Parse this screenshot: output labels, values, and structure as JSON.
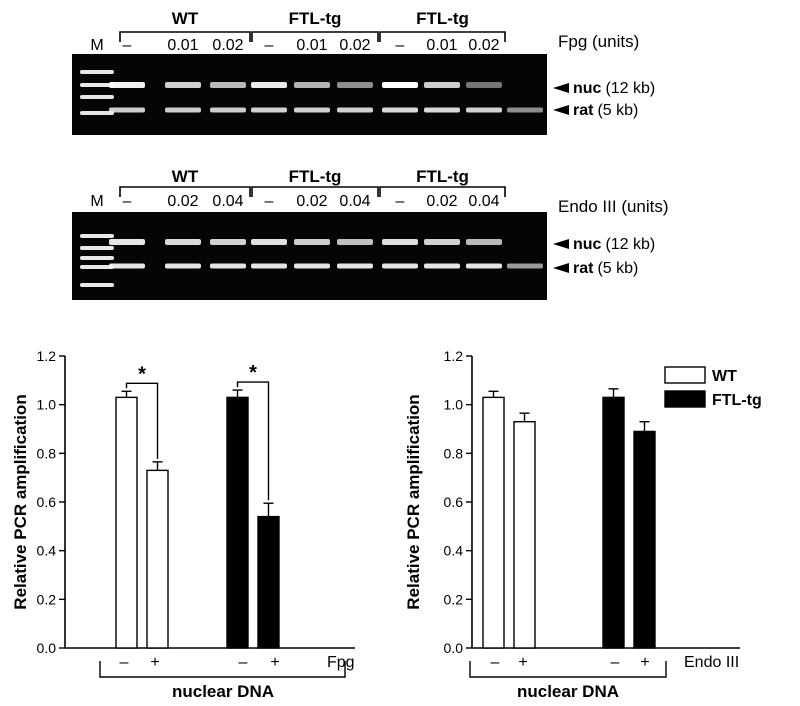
{
  "gels": [
    {
      "marker_label": "M",
      "groups": [
        "WT",
        "FTL-tg",
        "FTL-tg"
      ],
      "lane_labels": [
        "–",
        "0.01",
        "0.02",
        "–",
        "0.01",
        "0.02",
        "–",
        "0.01",
        "0.02"
      ],
      "treatment_label": "Fpg (units)",
      "bands": [
        {
          "name": "nuc",
          "size": "(12 kb)"
        },
        {
          "name": "rat",
          "size": "(5 kb)"
        }
      ],
      "nuc_intensity": [
        0.95,
        0.82,
        0.72,
        0.92,
        0.7,
        0.55,
        1.0,
        0.8,
        0.45,
        0.0
      ],
      "rat_intensity": [
        0.8,
        0.8,
        0.8,
        0.82,
        0.82,
        0.82,
        0.85,
        0.85,
        0.82,
        0.55
      ]
    },
    {
      "marker_label": "M",
      "groups": [
        "WT",
        "FTL-tg",
        "FTL-tg"
      ],
      "lane_labels": [
        "–",
        "0.02",
        "0.04",
        "–",
        "0.02",
        "0.04",
        "–",
        "0.02",
        "0.04"
      ],
      "treatment_label": "Endo III (units)",
      "bands": [
        {
          "name": "nuc",
          "size": "(12 kb)"
        },
        {
          "name": "rat",
          "size": "(5 kb)"
        }
      ],
      "nuc_intensity": [
        0.9,
        0.85,
        0.82,
        0.88,
        0.8,
        0.75,
        0.88,
        0.82,
        0.72,
        0.0
      ],
      "rat_intensity": [
        0.9,
        0.9,
        0.9,
        0.9,
        0.9,
        0.9,
        0.9,
        0.9,
        0.9,
        0.6
      ]
    }
  ],
  "chart_data": [
    {
      "type": "bar",
      "ylabel": "Relative PCR amplification",
      "ylim": [
        0,
        1.2
      ],
      "yticks": [
        "0.0",
        "0.2",
        "0.4",
        "0.6",
        "0.8",
        "1.0",
        "1.2"
      ],
      "categories": [
        "–",
        "+",
        "–",
        "+"
      ],
      "values": [
        1.03,
        0.73,
        1.03,
        0.54
      ],
      "errors": [
        0.025,
        0.035,
        0.03,
        0.055
      ],
      "fill": [
        "white",
        "white",
        "black",
        "black"
      ],
      "treatment_label": "Fpg",
      "xtitle": "nuclear DNA",
      "significance": [
        {
          "between": [
            0,
            1
          ],
          "label": "*"
        },
        {
          "between": [
            2,
            3
          ],
          "label": "*"
        }
      ]
    },
    {
      "type": "bar",
      "ylabel": "Relative PCR amplification",
      "ylim": [
        0,
        1.2
      ],
      "yticks": [
        "0.0",
        "0.2",
        "0.4",
        "0.6",
        "0.8",
        "1.0",
        "1.2"
      ],
      "categories": [
        "–",
        "+",
        "–",
        "+"
      ],
      "values": [
        1.03,
        0.93,
        1.03,
        0.89
      ],
      "errors": [
        0.025,
        0.035,
        0.035,
        0.04
      ],
      "fill": [
        "white",
        "white",
        "black",
        "black"
      ],
      "treatment_label": "Endo III",
      "xtitle": "nuclear DNA",
      "significance": []
    }
  ],
  "legend": {
    "placement": "top-right",
    "items": [
      {
        "label": "WT",
        "fill": "white"
      },
      {
        "label": "FTL-tg",
        "fill": "black"
      }
    ]
  }
}
